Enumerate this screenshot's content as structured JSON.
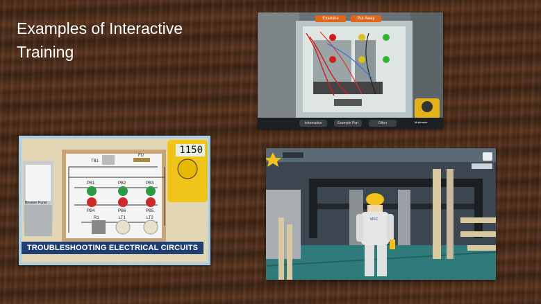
{
  "slide": {
    "title": "Examples of Interactive Training"
  },
  "panel_sim": {
    "top_buttons": [
      "Examine",
      "Put Away"
    ],
    "bottom_tabs": [
      "Information",
      "Example Part",
      "Other"
    ],
    "meter_label": "Multimeter"
  },
  "circuit_sim": {
    "banner": "TROUBLESHOOTING ELECTRICAL CIRCUITS",
    "meter_reading": "1150",
    "labels": {
      "tb1": "TB1",
      "fu": "FU",
      "pb1": "PB1",
      "pb2": "PB2",
      "pb3": "PB3",
      "pb4": "PB4",
      "pb5": "PB5",
      "pb6": "PB6",
      "r1": "R1",
      "lt1": "LT1",
      "lt2": "LT2",
      "panel": "Breaker Panel"
    }
  },
  "plant_sim": {
    "badge": "MSC",
    "colors": {
      "hardhat": "#f2c21a",
      "suit": "#e6e6e6"
    }
  },
  "colors": {
    "accent_orange": "#e0661a",
    "banner_blue": "#1f3f73",
    "meter_yellow": "#f0c419"
  }
}
